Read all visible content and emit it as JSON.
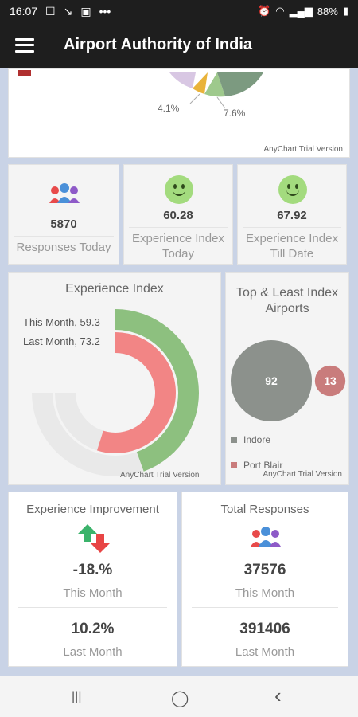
{
  "status_bar": {
    "time": "16:07",
    "battery": "88%"
  },
  "app_bar": {
    "title": "Airport Authority of India"
  },
  "pie_chart": {
    "trial_label": "AnyChart Trial Version",
    "label_a": "4.1%",
    "label_b": "7.6%"
  },
  "kpis": [
    {
      "value": "5870",
      "label": "Responses Today"
    },
    {
      "value": "60.28",
      "label": "Experience Index Today"
    },
    {
      "value": "67.92",
      "label": "Experience Index Till Date"
    }
  ],
  "experience_index": {
    "title": "Experience Index",
    "trial_label": "AnyChart Trial Version",
    "chart_data": {
      "type": "radial-bar",
      "series": [
        {
          "name": "This Month",
          "label": "This Month, 59.3",
          "value": 59.3
        },
        {
          "name": "Last Month",
          "label": "Last Month, 73.2",
          "value": 73.2
        }
      ],
      "colors": [
        "#8dc07f",
        "#f28585"
      ]
    }
  },
  "top_least": {
    "title": "Top & Least Index Airports",
    "trial_label": "AnyChart Trial Version",
    "chart_data": {
      "type": "bubble",
      "series": [
        {
          "name": "Indore",
          "value": 92,
          "color": "#8c918c"
        },
        {
          "name": "Port Blair",
          "value": 13,
          "color": "#c97c7c"
        }
      ]
    }
  },
  "improvement": {
    "title": "Experience Improvement",
    "this_value": "-18.%",
    "this_label": "This Month",
    "last_value": "10.2%",
    "last_label": "Last Month"
  },
  "total_responses": {
    "title": "Total Responses",
    "this_value": "37576",
    "this_label": "This Month",
    "last_value": "391406",
    "last_label": "Last Month"
  },
  "nav": {
    "recents": "|||",
    "home": "◯",
    "back": "‹"
  }
}
